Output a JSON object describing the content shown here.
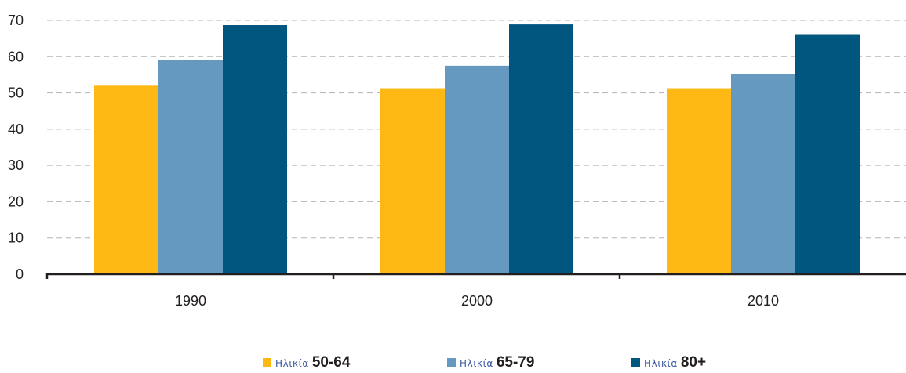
{
  "chart_data": {
    "type": "bar",
    "categories": [
      "1990",
      "2000",
      "2010"
    ],
    "series": [
      {
        "name": "Ηλικία 50-64",
        "prefix": "Ηλικία",
        "range": "50-64",
        "color": "#fdb813",
        "values": [
          52,
          51.3,
          51.3
        ]
      },
      {
        "name": "Ηλικία 65-79",
        "prefix": "Ηλικία",
        "range": "65-79",
        "color": "#6699bf",
        "values": [
          59.2,
          57.5,
          55.3
        ]
      },
      {
        "name": "Ηλικία 80+",
        "prefix": "Ηλικία",
        "range": "80+",
        "color": "#00567f",
        "values": [
          68.7,
          68.9,
          66
        ]
      }
    ],
    "ylim": [
      0,
      70
    ],
    "yticks": [
      "0",
      "10",
      "20",
      "30",
      "40",
      "50",
      "60",
      "70"
    ],
    "grid": true,
    "legend_position": "bottom",
    "title": "",
    "xlabel": "",
    "ylabel": ""
  }
}
